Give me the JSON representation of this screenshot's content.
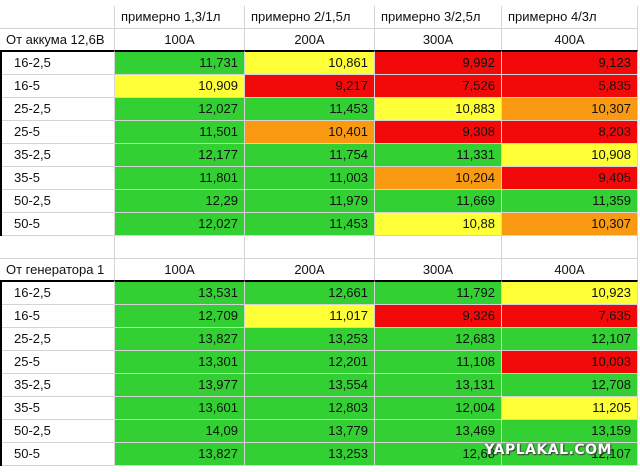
{
  "columns": [
    "примерно 1,3/1л",
    "примерно 2/1,5л",
    "примерно 3/2,5л",
    "примерно 4/3л"
  ],
  "currents": [
    "100А",
    "200А",
    "300А",
    "400А"
  ],
  "table1": {
    "title": "От аккума 12,6В",
    "rows": [
      {
        "label": "16-2,5",
        "values": [
          "11,731",
          "10,861",
          "9,992",
          "9,123"
        ]
      },
      {
        "label": "16-5",
        "values": [
          "10,909",
          "9,217",
          "7,526",
          "5,835"
        ]
      },
      {
        "label": "25-2,5",
        "values": [
          "12,027",
          "11,453",
          "10,883",
          "10,307"
        ]
      },
      {
        "label": "25-5",
        "values": [
          "11,501",
          "10,401",
          "9,308",
          "8,203"
        ]
      },
      {
        "label": "35-2,5",
        "values": [
          "12,177",
          "11,754",
          "11,331",
          "10,908"
        ]
      },
      {
        "label": "35-5",
        "values": [
          "11,801",
          "11,003",
          "10,204",
          "9,405"
        ]
      },
      {
        "label": "50-2,5",
        "values": [
          "12,29",
          "11,979",
          "11,669",
          "11,359"
        ]
      },
      {
        "label": "50-5",
        "values": [
          "12,027",
          "11,453",
          "10,88",
          "10,307"
        ]
      }
    ]
  },
  "table2": {
    "title": "От генератора 1",
    "rows": [
      {
        "label": "16-2,5",
        "values": [
          "13,531",
          "12,661",
          "11,792",
          "10,923"
        ]
      },
      {
        "label": "16-5",
        "values": [
          "12,709",
          "11,017",
          "9,326",
          "7,635"
        ]
      },
      {
        "label": "25-2,5",
        "values": [
          "13,827",
          "13,253",
          "12,683",
          "12,107"
        ]
      },
      {
        "label": "25-5",
        "values": [
          "13,301",
          "12,201",
          "11,108",
          "10,003"
        ]
      },
      {
        "label": "35-2,5",
        "values": [
          "13,977",
          "13,554",
          "13,131",
          "12,708"
        ]
      },
      {
        "label": "35-5",
        "values": [
          "13,601",
          "12,803",
          "12,004",
          "11,205"
        ]
      },
      {
        "label": "50-2,5",
        "values": [
          "14,09",
          "13,779",
          "13,469",
          "13,159"
        ]
      },
      {
        "label": "50-5",
        "values": [
          "13,827",
          "13,253",
          "12,68",
          "12,107"
        ]
      }
    ]
  },
  "colors": {
    "green": "#33d033",
    "yellow": "#ffff38",
    "red": "#f20a0a",
    "orange": "#fa9a12"
  },
  "watermark": "YAPLAKAL.COM"
}
